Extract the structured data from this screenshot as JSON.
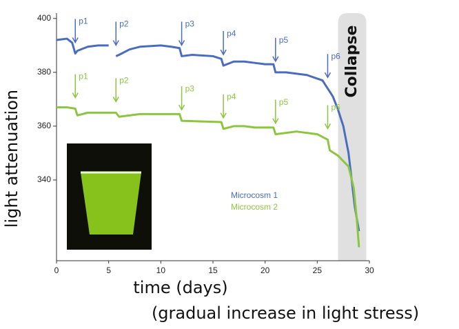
{
  "chart_data": {
    "type": "line",
    "xlabel": "time (days)",
    "xlabel_note": "(gradual increase in light stress)",
    "ylabel": "light attenuation",
    "band_label": "Collapse",
    "band": [
      27,
      29.7
    ],
    "xlim": [
      0,
      30
    ],
    "xticks": [
      0,
      5,
      10,
      15,
      20,
      25,
      30
    ],
    "ylim": [
      310,
      402
    ],
    "yticks": [
      340,
      360,
      380,
      400
    ],
    "annotations": [
      {
        "text": "p1",
        "x": 1.8
      },
      {
        "text": "p2",
        "x": 5.7
      },
      {
        "text": "p3",
        "x": 12
      },
      {
        "text": "p4",
        "x": 16
      },
      {
        "text": "p5",
        "x": 21
      },
      {
        "text": "p6",
        "x": 26
      }
    ],
    "series": [
      {
        "name": "Microcosm 1",
        "color": "#4a6cc0",
        "x": [
          0,
          1,
          1.5,
          1.8,
          2,
          3,
          4,
          5,
          5.5,
          5.7,
          6,
          7,
          8,
          10,
          11,
          11.8,
          12,
          13,
          15,
          15.8,
          16,
          17,
          18,
          19,
          20,
          20.8,
          21,
          22,
          24,
          25.5,
          26,
          26.5,
          27,
          27.5,
          28,
          28.3,
          28.6,
          29
        ],
        "values": [
          392,
          392.5,
          391,
          387,
          388,
          389.5,
          390,
          390,
          null,
          386,
          386.5,
          388.5,
          389.5,
          390,
          389.5,
          389,
          386,
          386.5,
          386,
          385,
          382.5,
          384,
          384,
          383.5,
          383,
          383,
          380,
          380,
          379,
          377,
          374,
          371,
          366,
          360,
          350,
          340,
          330,
          321
        ]
      },
      {
        "name": "Microcosm 2",
        "color": "#8cc63f",
        "x": [
          0,
          1,
          1.8,
          2,
          3,
          5,
          5.7,
          6,
          8,
          11.8,
          12,
          15.8,
          16,
          17,
          18,
          19,
          20.8,
          21,
          23,
          25,
          26,
          26.2,
          27,
          28,
          28.5,
          28.8,
          29
        ],
        "values": [
          367,
          367,
          366.5,
          364,
          365,
          365,
          365,
          363.5,
          364.5,
          364.5,
          362,
          361.5,
          359,
          360,
          360,
          359.5,
          359.5,
          357,
          358,
          357,
          355,
          351,
          349,
          345,
          337,
          325,
          315
        ]
      }
    ]
  }
}
